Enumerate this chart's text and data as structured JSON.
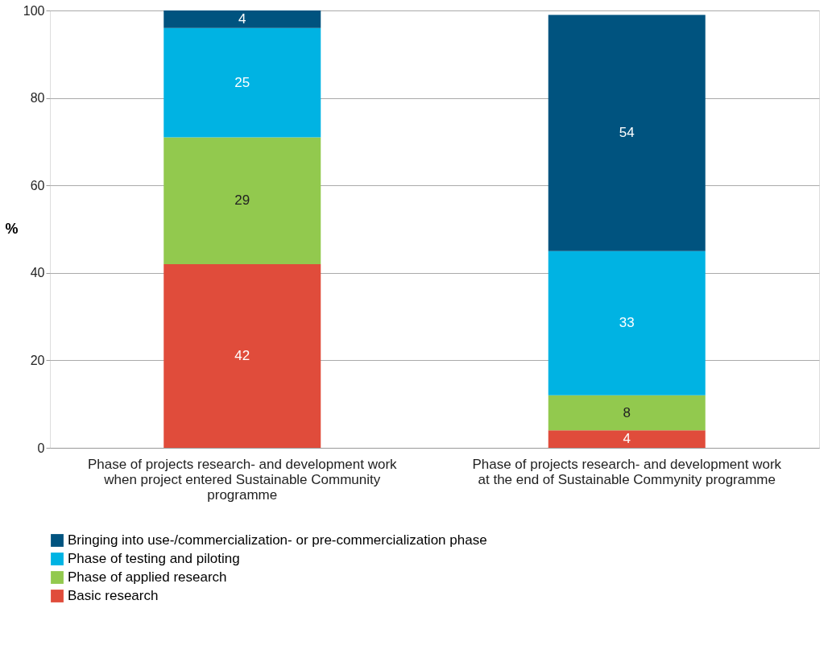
{
  "chart_data": {
    "type": "bar",
    "stacked": true,
    "ylabel": "%",
    "categories": [
      "Phase of projects research- and development work when project entered Sustainable Community programme",
      "Phase of projects research- and development work at the end of Sustainable Commynity programme"
    ],
    "series": [
      {
        "name": "Basic research",
        "color": "#e04c3b",
        "values": [
          42,
          4
        ]
      },
      {
        "name": "Phase of applied research",
        "color": "#92c94e",
        "values": [
          29,
          8
        ]
      },
      {
        "name": "Phase of testing and piloting",
        "color": "#00b3e3",
        "values": [
          25,
          33
        ]
      },
      {
        "name": "Bringing into use-/commercialization- or pre-commercialization phase",
        "color": "#00537f",
        "values": [
          4,
          54
        ]
      }
    ],
    "ylim": [
      0,
      100
    ],
    "yticks": [
      0,
      20,
      40,
      60,
      80,
      100
    ],
    "grid": "y",
    "legend": "bottom",
    "data_labels": true
  }
}
